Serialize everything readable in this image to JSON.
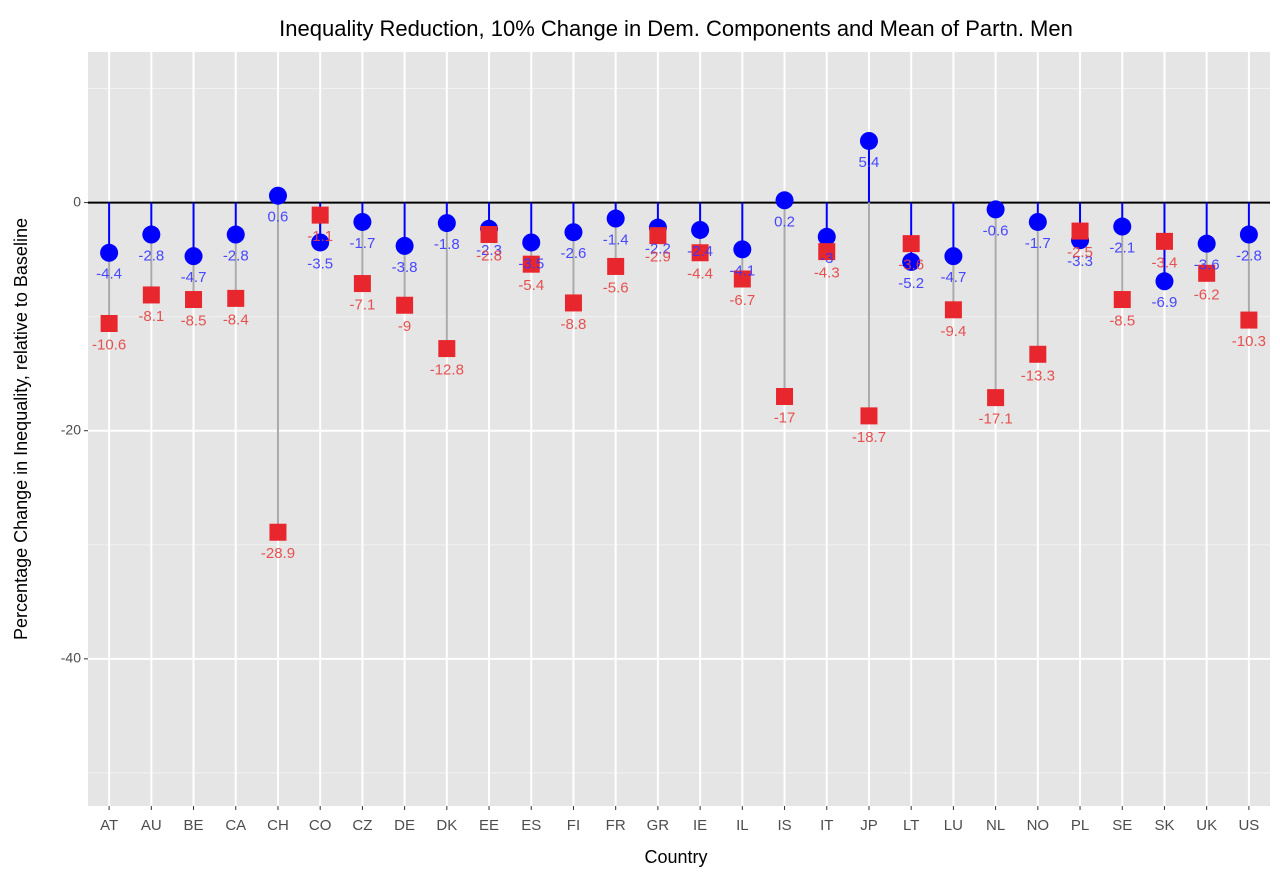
{
  "chart_data": {
    "type": "dot",
    "title": "Inequality Reduction, 10% Change in Dem. Components and Mean of Partn. Men",
    "x_label": "Country",
    "y_label": "Percentage Change in Inequality, relative to Baseline",
    "categories": [
      "AT",
      "AU",
      "BE",
      "CA",
      "CH",
      "CO",
      "CZ",
      "DE",
      "DK",
      "EE",
      "ES",
      "FI",
      "FR",
      "GR",
      "IE",
      "IL",
      "IS",
      "IT",
      "JP",
      "LT",
      "LU",
      "NL",
      "NO",
      "PL",
      "SE",
      "SK",
      "UK",
      "US"
    ],
    "series": [
      {
        "color": "#0000ff",
        "label_color": "#3535ff",
        "marker": "circle",
        "values": [
          -4.4,
          -2.8,
          -4.7,
          -2.8,
          0.6,
          -3.5,
          -1.7,
          -3.8,
          -1.8,
          -2.3,
          -3.5,
          -2.6,
          -1.4,
          -2.2,
          -2.4,
          -4.1,
          0.2,
          -3,
          5.4,
          -5.2,
          -4.7,
          -0.6,
          -1.7,
          -3.3,
          -2.1,
          -6.9,
          -3.6,
          -2.8
        ]
      },
      {
        "color": "#e8262d",
        "label_color": "#e6403f",
        "marker": "square",
        "values": [
          -10.6,
          -8.1,
          -8.5,
          -8.4,
          -28.9,
          -1.1,
          -7.1,
          -9,
          -12.8,
          -2.8,
          -5.4,
          -8.8,
          -5.6,
          -2.9,
          -4.4,
          -6.7,
          -17,
          -4.3,
          -18.7,
          -3.6,
          -9.4,
          -17.1,
          -13.3,
          -2.5,
          -8.5,
          -3.4,
          -6.2,
          -10.3
        ]
      }
    ],
    "ylim": [
      -52.9,
      13.2
    ],
    "yticks": [
      -40,
      -20,
      0
    ],
    "grid": true
  }
}
